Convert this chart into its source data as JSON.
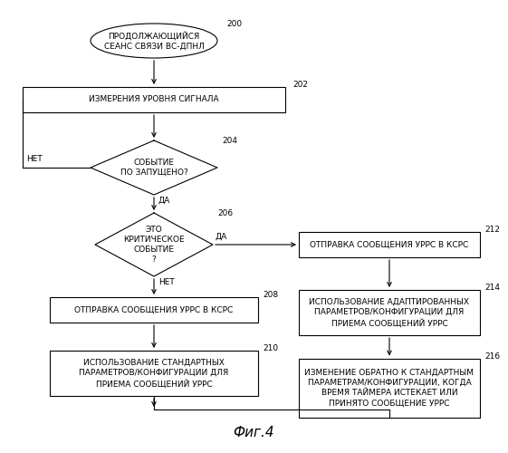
{
  "title": "Фиг.4",
  "background_color": "#ffffff",
  "node_bg": "#ffffff",
  "node_border": "#000000",
  "font_size": 6.5,
  "nodes": {
    "n200": {
      "label": "200"
    },
    "n202": {
      "label": "202"
    },
    "n204": {
      "label": "204"
    },
    "n206": {
      "label": "206"
    },
    "n208": {
      "label": "208"
    },
    "n210": {
      "label": "210"
    },
    "n212": {
      "label": "212"
    },
    "n214": {
      "label": "214"
    },
    "n216": {
      "label": "216"
    }
  },
  "texts": {
    "t200": "ПРОДОЛЖАЮЩИЙСЯ\nСЕАНС СВЯЗИ ВС-ДПНЛ",
    "t202": "ИЗМЕРЕНИЯ УРОВНЯ СИГНАЛА",
    "t204": "СОБЫТИЕ\nПО ЗАПУЩЕНО?",
    "t206": "ЭТО\nКРИТИЧЕСКОЕ\nСОБЫТИЕ\n?",
    "t208": "ОТПРАВКА СООБЩЕНИЯ УРРС В КСРС",
    "t210": "ИСПОЛЬЗОВАНИЕ СТАНДАРТНЫХ\nПАРАМЕТРОВ/КОНФИГУРАЦИИ ДЛЯ\nПРИЕМА СООБЩЕНИЙ УРРС",
    "t212": "ОТПРАВКА СООБЩЕНИЯ УРРС В КСРС",
    "t214": "ИСПОЛЬЗОВАНИЕ АДАПТИРОВАННЫХ\nПАРАМЕТРОВ/КОНФИГУРАЦИИ ДЛЯ\nПРИЕМА СООБЩЕНИЙ УРРС",
    "t216": "ИЗМЕНЕНИЕ ОБРАТНО К СТАНДАРТНЫМ\nПАРАМЕТРАМ/КОНФИГУРАЦИИ, КОГДА\nВРЕМЯ ТАЙМЕРА ИСТЕКАЕТ ИЛИ\nПРИНЯТО СООБЩЕНИЕ УРРС"
  }
}
